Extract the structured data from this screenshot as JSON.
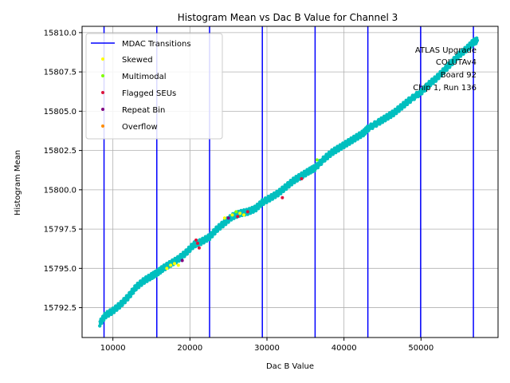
{
  "chart_data": {
    "type": "scatter",
    "title": "Histogram Mean vs Dac B Value for Channel 3",
    "xlabel": "Dac B Value",
    "ylabel": "Histogram Mean",
    "xlim": [
      6000,
      60000
    ],
    "ylim": [
      15790.6,
      15810.4
    ],
    "xticks": [
      10000,
      20000,
      30000,
      40000,
      50000
    ],
    "xtick_labels": [
      "10000",
      "20000",
      "30000",
      "40000",
      "50000"
    ],
    "yticks": [
      15792.5,
      15795.0,
      15797.5,
      15800.0,
      15802.5,
      15805.0,
      15807.5,
      15810.0
    ],
    "ytick_labels": [
      "15792.5",
      "15795.0",
      "15797.5",
      "15800.0",
      "15802.5",
      "15805.0",
      "15807.5",
      "15810.0"
    ],
    "grid": true,
    "legend_position": "top-left",
    "mdac_transitions": {
      "name": "MDAC Transitions",
      "color": "#0000ff",
      "x": [
        8850,
        15700,
        22550,
        29400,
        36250,
        43100,
        49950,
        56800
      ]
    },
    "main_series": {
      "color": "#00bfbf",
      "x": [
        8300,
        9000,
        10000,
        11000,
        12000,
        13000,
        14000,
        15000,
        15700,
        16500,
        17500,
        18500,
        19500,
        20500,
        21500,
        22550,
        23500,
        24500,
        25500,
        26500,
        27500,
        28500,
        29400,
        30500,
        31500,
        32500,
        33500,
        34500,
        35500,
        36250,
        37500,
        38500,
        39500,
        40500,
        41500,
        42500,
        43100,
        44500,
        45500,
        46500,
        47500,
        48500,
        49950,
        51000,
        52000,
        53000,
        54000,
        55000,
        56000,
        56800,
        57300
      ],
      "y": [
        15791.5,
        15792.0,
        15792.3,
        15792.7,
        15793.2,
        15793.8,
        15794.2,
        15794.5,
        15794.7,
        15795.0,
        15795.3,
        15795.6,
        15796.0,
        15796.5,
        15796.7,
        15797.0,
        15797.5,
        15797.9,
        15798.3,
        15798.5,
        15798.6,
        15798.8,
        15799.2,
        15799.5,
        15799.8,
        15800.2,
        15800.6,
        15800.9,
        15801.2,
        15801.4,
        15802.0,
        15802.4,
        15802.7,
        15803.0,
        15803.3,
        15803.6,
        15803.9,
        15804.3,
        15804.6,
        15804.9,
        15805.3,
        15805.7,
        15806.2,
        15806.7,
        15807.1,
        15807.6,
        15808.1,
        15808.6,
        15809.0,
        15809.4,
        15809.5
      ]
    },
    "series": [
      {
        "name": "Skewed",
        "color": "#ffff00",
        "x": [
          17000,
          17500,
          18000,
          18500,
          24500,
          25500,
          26500,
          27000
        ],
        "y": [
          15795.0,
          15795.2,
          15795.3,
          15795.2,
          15798.2,
          15798.4,
          15798.5,
          15798.4
        ]
      },
      {
        "name": "Multimodal",
        "color": "#80ff00",
        "x": [
          26000,
          36500
        ],
        "y": [
          15798.6,
          15801.9
        ]
      },
      {
        "name": "Flagged SEUs",
        "color": "#dc143c",
        "x": [
          20800,
          21000,
          21200,
          26200,
          27500,
          32000,
          34500
        ],
        "y": [
          15796.8,
          15796.6,
          15796.3,
          15798.3,
          15798.6,
          15799.5,
          15800.7
        ]
      },
      {
        "name": "Repeat Bin",
        "color": "#800080",
        "x": [
          19000,
          25000
        ],
        "y": [
          15795.5,
          15798.2
        ]
      },
      {
        "name": "Overflow",
        "color": "#ff8c00",
        "x": [],
        "y": []
      }
    ],
    "annotations": [
      "ATLAS Upgrade",
      "COLUTAv4",
      "Board 92",
      "Chip 1, Run 136"
    ]
  }
}
